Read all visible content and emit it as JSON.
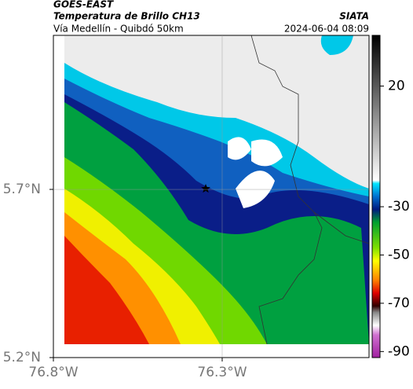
{
  "header": {
    "source": "GOES-EAST",
    "product": "Temperatura de Brillo CH13",
    "region": "Vía Medellín - Quibdó 50km",
    "agency": "SIATA",
    "datetime": "2024-06-04 08:09"
  },
  "map": {
    "xlim": [
      -76.8,
      -75.865
    ],
    "ylim": [
      5.2,
      6.158
    ],
    "xticks": [
      {
        "value": -76.8,
        "label": "76.8°W"
      },
      {
        "value": -76.3,
        "label": "76.3°W"
      }
    ],
    "yticks": [
      {
        "value": 5.7,
        "label": "5.7°N"
      },
      {
        "value": 5.2,
        "label": "5.2°N"
      }
    ],
    "grid": true
  },
  "colorbar": {
    "lim": [
      -92.5,
      41
    ],
    "ticks": [
      20,
      -30,
      -50,
      -70,
      -90
    ]
  }
}
